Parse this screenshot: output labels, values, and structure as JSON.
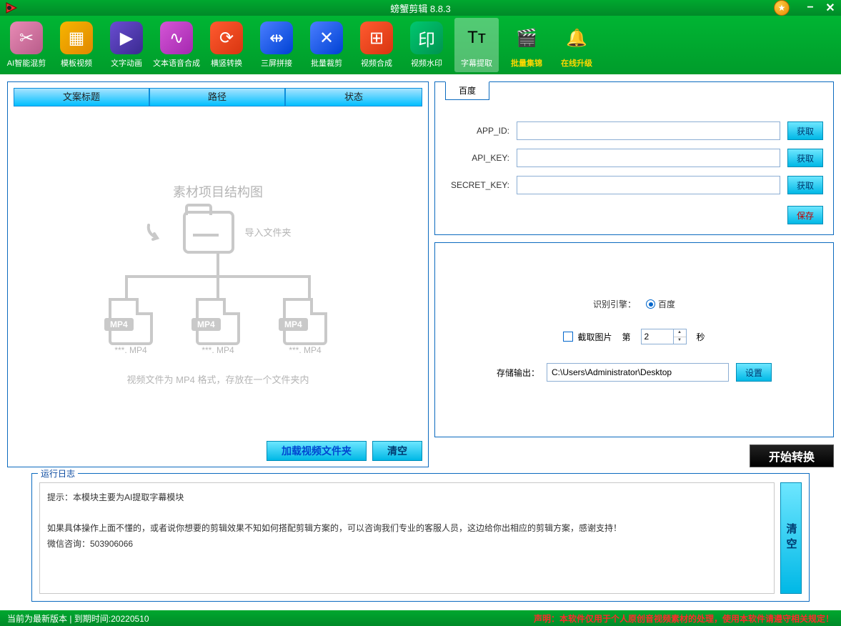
{
  "window": {
    "title": "螃蟹剪辑 8.8.3"
  },
  "toolbar": {
    "items": [
      {
        "label": "AI智能混剪",
        "icon_color": "linear-gradient(135deg,#e88bb5,#b85c8a)",
        "glyph": "✂"
      },
      {
        "label": "模板视频",
        "icon_color": "linear-gradient(135deg,#f7b500,#e08800)",
        "glyph": "▦"
      },
      {
        "label": "文字动画",
        "icon_color": "linear-gradient(135deg,#6a4dd1,#3a2a90)",
        "glyph": "▶"
      },
      {
        "label": "文本语音合成",
        "icon_color": "linear-gradient(135deg,#d456d6,#a528b0)",
        "glyph": "∿"
      },
      {
        "label": "横竖转换",
        "icon_color": "linear-gradient(135deg,#ff5b30,#d83510)",
        "glyph": "⟳"
      },
      {
        "label": "三屏拼接",
        "icon_color": "linear-gradient(135deg,#4a7eff,#0042d4)",
        "glyph": "⇹"
      },
      {
        "label": "批量裁剪",
        "icon_color": "linear-gradient(135deg,#4a7eff,#0042d4)",
        "glyph": "✕"
      },
      {
        "label": "视频合成",
        "icon_color": "linear-gradient(135deg,#ff5b30,#d83510)",
        "glyph": "⊞"
      },
      {
        "label": "视频水印",
        "icon_color": "linear-gradient(135deg,#00c770,#009450)",
        "glyph": "印"
      },
      {
        "label": "字幕提取",
        "icon_color": "transparent",
        "glyph": "Tᴛ",
        "selected": true,
        "dark": true
      },
      {
        "label": "批量集锦",
        "icon_color": "transparent",
        "glyph": "🎬",
        "yellow": true
      },
      {
        "label": "在线升级",
        "icon_color": "transparent",
        "glyph": "🔔",
        "yellow": true
      }
    ]
  },
  "left_panel": {
    "headers": [
      "文案标题",
      "路径",
      "状态"
    ],
    "diagram": {
      "title": "素材项目结构图",
      "import_label": "导入文件夹",
      "file_badge": "MP4",
      "file_names": [
        "***. MP4",
        "***. MP4",
        "***. MP4"
      ],
      "hint": "视频文件为 MP4 格式，存放在一个文件夹内"
    },
    "btn_load": "加载视频文件夹",
    "btn_clear": "清空"
  },
  "right_panel": {
    "tab_label": "百度",
    "form": [
      {
        "label": "APP_ID:",
        "value": "",
        "btn": "获取"
      },
      {
        "label": "API_KEY:",
        "value": "",
        "btn": "获取"
      },
      {
        "label": "SECRET_KEY:",
        "value": "",
        "btn": "获取"
      }
    ],
    "btn_save": "保存",
    "engine_label": "识别引擎：",
    "engine_option": "百度",
    "screenshot_label": "截取图片",
    "screenshot_pre": "第",
    "screenshot_value": "2",
    "screenshot_unit": "秒",
    "output_label": "存储输出：",
    "output_path": "C:\\Users\\Administrator\\Desktop",
    "btn_settings": "设置"
  },
  "btn_start": "开始转换",
  "log": {
    "legend": "运行日志",
    "line1": "提示：本模块主要为AI提取字幕模块",
    "line2": "如果具体操作上面不懂的，或者说你想要的剪辑效果不知如何搭配剪辑方案的，可以咨询我们专业的客服人员，这边给你出相应的剪辑方案，感谢支持！",
    "line3": "微信咨询：503906066",
    "btn_clear": "清空"
  },
  "statusbar": {
    "left": "当前为最新版本 | 到期时间:20220510",
    "right": "声明：本软件仅用于个人原创音视频素材的处理，使用本软件请遵守相关规定！"
  },
  "colors": {
    "green_header": "#00a82f",
    "panel_border": "#0b6abf",
    "cyan_btn_top": "#6de6ff",
    "cyan_btn_bot": "#00b8e6",
    "th_gradient_top": "#a8e4ff",
    "th_gradient_bot": "#00bfff"
  }
}
